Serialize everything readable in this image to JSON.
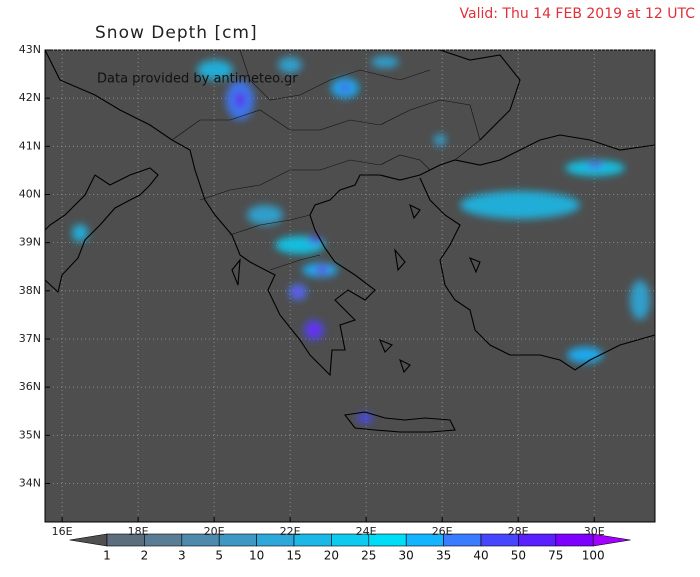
{
  "header": {
    "title": "Snow Depth  [cm]",
    "valid": "Valid: Thu 14 FEB 2019 at 12 UTC"
  },
  "map": {
    "credit": "Data provided by antimeteo.gr",
    "xlim": [
      15.55,
      31.6
    ],
    "ylim": [
      33.2,
      43
    ],
    "lat_ticks": [
      {
        "value": 43,
        "label": "43N"
      },
      {
        "value": 42,
        "label": "42N"
      },
      {
        "value": 41,
        "label": "41N"
      },
      {
        "value": 40,
        "label": "40N"
      },
      {
        "value": 39,
        "label": "39N"
      },
      {
        "value": 38,
        "label": "38N"
      },
      {
        "value": 37,
        "label": "37N"
      },
      {
        "value": 36,
        "label": "36N"
      },
      {
        "value": 35,
        "label": "35N"
      },
      {
        "value": 34,
        "label": "34N"
      }
    ],
    "lon_ticks": [
      {
        "value": 16,
        "label": "16E"
      },
      {
        "value": 18,
        "label": "18E"
      },
      {
        "value": 20,
        "label": "20E"
      },
      {
        "value": 22,
        "label": "22E"
      },
      {
        "value": 24,
        "label": "24E"
      },
      {
        "value": 26,
        "label": "26E"
      },
      {
        "value": 28,
        "label": "28E"
      },
      {
        "value": 30,
        "label": "30E"
      }
    ]
  },
  "colorbar": {
    "levels": [
      1,
      2,
      3,
      5,
      10,
      15,
      20,
      25,
      30,
      35,
      40,
      50,
      75,
      100
    ],
    "colors": [
      "#505050",
      "#5c6e7e",
      "#587d94",
      "#4d8aab",
      "#3f97c3",
      "#2ea7d9",
      "#1db8e6",
      "#0ccbef",
      "#00ddf6",
      "#14b4ff",
      "#3a7cff",
      "#4646ff",
      "#5a20ff",
      "#7e00ff",
      "#a300ff"
    ]
  }
}
